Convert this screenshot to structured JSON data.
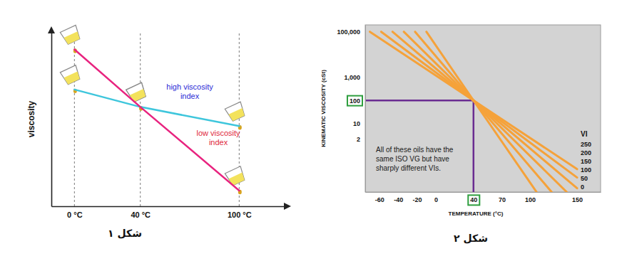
{
  "chart_data": [
    {
      "type": "line",
      "title": "شکل ۱",
      "y_label": "viscosity",
      "xlim": [
        -14,
        128
      ],
      "ylim": [
        0,
        10
      ],
      "xticks": [
        {
          "value": 0,
          "label": "0 °C"
        },
        {
          "value": 40,
          "label": "40 °C"
        },
        {
          "value": 100,
          "label": "100 °C"
        }
      ],
      "grid": "x",
      "tick_labels": "x",
      "x": [
        0,
        40,
        100
      ],
      "series": [
        {
          "name": "high viscosity index",
          "color": "#3ec6dc",
          "values": [
            6.7,
            5.7,
            4.6
          ]
        },
        {
          "name": "low viscosity index",
          "color": "#e8237f",
          "values": [
            9.0,
            5.7,
            0.9
          ]
        }
      ]
    },
    {
      "type": "line",
      "title": "شکل ۲",
      "x_label": "TEMPERATURE (°C)",
      "y_label": "KINEMATIC VISCOSITY (cSt)",
      "log": "y",
      "xlim": [
        -75,
        175
      ],
      "ylim": [
        0.01,
        200000
      ],
      "xticks": [
        -60,
        -40,
        -20,
        0,
        40,
        70,
        100,
        150
      ],
      "yticks": [
        2,
        10,
        100,
        {
          "value": 1000,
          "label": "1,000"
        },
        {
          "value": 100000,
          "label": "100,000"
        }
      ],
      "legend": "right",
      "legend_title": "VI",
      "annotation": [
        "All of these oils have the",
        "same ISO VG but have",
        "sharply different VIs."
      ],
      "highlight": {
        "x": 40,
        "y": 100,
        "color": "#6a2c91"
      },
      "series": [
        {
          "name": "250",
          "color": "#f5a23a",
          "x": [
            -70,
            40,
            150
          ],
          "values": [
            100000,
            100,
            0.1
          ]
        },
        {
          "name": "200",
          "color": "#f5a23a",
          "x": [
            -58,
            40,
            150
          ],
          "values": [
            100000,
            100,
            0.043
          ]
        },
        {
          "name": "150",
          "color": "#f5a23a",
          "x": [
            -46,
            40,
            150
          ],
          "values": [
            100000,
            100,
            0.0146
          ]
        },
        {
          "name": "100",
          "color": "#f5a23a",
          "x": [
            -34,
            40,
            139
          ],
          "values": [
            100000,
            100,
            0.01
          ]
        },
        {
          "name": "50",
          "color": "#f5a23a",
          "x": [
            -22,
            40,
            123
          ],
          "values": [
            100000,
            100,
            0.01
          ]
        },
        {
          "name": "0",
          "color": "#f5a23a",
          "x": [
            -10,
            40,
            107
          ],
          "values": [
            100000,
            100,
            0.01
          ]
        }
      ]
    }
  ]
}
